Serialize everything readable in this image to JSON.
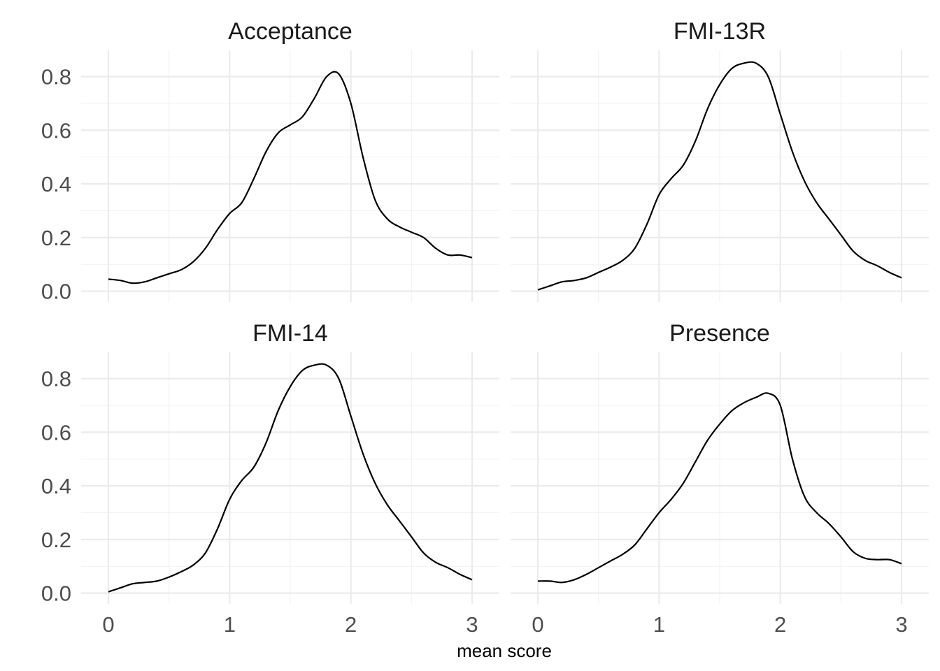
{
  "chart_data": {
    "type": "line",
    "chart_kind": "density (faceted)",
    "xlabel": "mean score",
    "ylabel": "",
    "xlim": [
      0,
      3
    ],
    "ylim": [
      0,
      0.85
    ],
    "x_ticks": [
      0,
      1,
      2,
      3
    ],
    "x_tick_labels": [
      "0",
      "1",
      "2",
      "3"
    ],
    "y_ticks": [
      0,
      0.2,
      0.4,
      0.6,
      0.8
    ],
    "y_tick_labels": [
      "0.0",
      "0.2",
      "0.4",
      "0.6",
      "0.8"
    ],
    "grid": true,
    "line_color": "#000000",
    "facets": [
      {
        "title": "Acceptance",
        "x": [
          0,
          0.1,
          0.2,
          0.3,
          0.4,
          0.5,
          0.6,
          0.7,
          0.8,
          0.9,
          1.0,
          1.1,
          1.2,
          1.3,
          1.4,
          1.5,
          1.6,
          1.7,
          1.8,
          1.9,
          2.0,
          2.1,
          2.2,
          2.3,
          2.4,
          2.5,
          2.6,
          2.7,
          2.8,
          2.9,
          3.0
        ],
        "y": [
          0.045,
          0.04,
          0.03,
          0.035,
          0.05,
          0.065,
          0.08,
          0.11,
          0.16,
          0.23,
          0.29,
          0.33,
          0.42,
          0.52,
          0.59,
          0.62,
          0.65,
          0.72,
          0.8,
          0.81,
          0.7,
          0.5,
          0.34,
          0.27,
          0.24,
          0.22,
          0.2,
          0.16,
          0.135,
          0.135,
          0.125
        ]
      },
      {
        "title": "FMI-13R",
        "x": [
          0,
          0.1,
          0.2,
          0.3,
          0.4,
          0.5,
          0.6,
          0.7,
          0.8,
          0.9,
          1.0,
          1.1,
          1.2,
          1.3,
          1.4,
          1.5,
          1.6,
          1.7,
          1.8,
          1.9,
          2.0,
          2.1,
          2.2,
          2.3,
          2.4,
          2.5,
          2.6,
          2.7,
          2.8,
          2.9,
          3.0
        ],
        "y": [
          0.005,
          0.02,
          0.035,
          0.04,
          0.05,
          0.07,
          0.09,
          0.115,
          0.16,
          0.25,
          0.36,
          0.42,
          0.47,
          0.56,
          0.68,
          0.77,
          0.83,
          0.85,
          0.85,
          0.8,
          0.66,
          0.52,
          0.41,
          0.33,
          0.27,
          0.21,
          0.15,
          0.115,
          0.095,
          0.07,
          0.05
        ]
      },
      {
        "title": "FMI-14",
        "x": [
          0,
          0.1,
          0.2,
          0.3,
          0.4,
          0.5,
          0.6,
          0.7,
          0.8,
          0.9,
          1.0,
          1.1,
          1.2,
          1.3,
          1.4,
          1.5,
          1.6,
          1.7,
          1.8,
          1.9,
          2.0,
          2.1,
          2.2,
          2.3,
          2.4,
          2.5,
          2.6,
          2.7,
          2.8,
          2.9,
          3.0
        ],
        "y": [
          0.005,
          0.02,
          0.035,
          0.04,
          0.045,
          0.06,
          0.08,
          0.105,
          0.15,
          0.24,
          0.35,
          0.42,
          0.47,
          0.56,
          0.68,
          0.77,
          0.83,
          0.85,
          0.85,
          0.8,
          0.66,
          0.52,
          0.41,
          0.33,
          0.27,
          0.21,
          0.15,
          0.115,
          0.095,
          0.07,
          0.05
        ]
      },
      {
        "title": "Presence",
        "x": [
          0,
          0.1,
          0.2,
          0.3,
          0.4,
          0.5,
          0.6,
          0.7,
          0.8,
          0.9,
          1.0,
          1.1,
          1.2,
          1.3,
          1.4,
          1.5,
          1.6,
          1.7,
          1.8,
          1.9,
          2.0,
          2.1,
          2.2,
          2.3,
          2.4,
          2.5,
          2.6,
          2.7,
          2.8,
          2.9,
          3.0
        ],
        "y": [
          0.045,
          0.045,
          0.04,
          0.05,
          0.07,
          0.095,
          0.12,
          0.145,
          0.18,
          0.24,
          0.3,
          0.35,
          0.41,
          0.49,
          0.57,
          0.63,
          0.68,
          0.71,
          0.73,
          0.745,
          0.7,
          0.5,
          0.36,
          0.3,
          0.26,
          0.21,
          0.155,
          0.13,
          0.125,
          0.125,
          0.11
        ]
      }
    ]
  }
}
